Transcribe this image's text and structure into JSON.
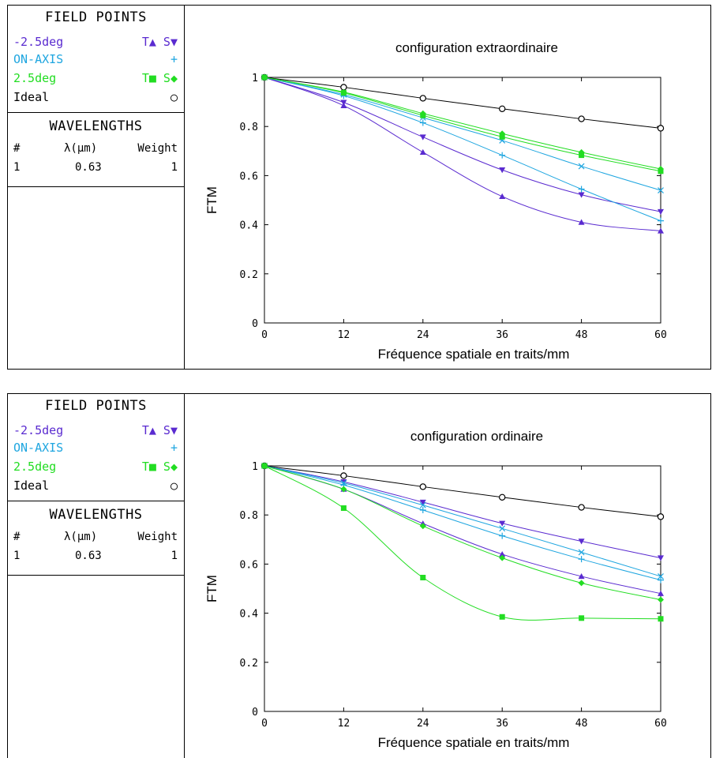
{
  "panels": [
    {
      "field_points": {
        "heading": "FIELD POINTS",
        "rows": [
          {
            "label": "-2.5deg",
            "symbols": "T▲ S▼",
            "color": "#5a2bd0"
          },
          {
            "label": "ON-AXIS",
            "symbols": "+",
            "color": "#1fa6e0"
          },
          {
            "label": "2.5deg",
            "symbols": "T■ S◆",
            "color": "#22dd22"
          },
          {
            "label": "Ideal",
            "symbols": "○",
            "color": "#000000"
          }
        ]
      },
      "wavelengths": {
        "heading": "WAVELENGTHS",
        "columns": [
          "#",
          "λ(µm)",
          "Weight"
        ],
        "rows": [
          [
            "1",
            "0.63",
            "1"
          ]
        ]
      }
    },
    {
      "field_points": {
        "heading": "FIELD POINTS",
        "rows": [
          {
            "label": "-2.5deg",
            "symbols": "T▲ S▼",
            "color": "#5a2bd0"
          },
          {
            "label": "ON-AXIS",
            "symbols": "+",
            "color": "#1fa6e0"
          },
          {
            "label": "2.5deg",
            "symbols": "T■ S◆",
            "color": "#22dd22"
          },
          {
            "label": "Ideal",
            "symbols": "○",
            "color": "#000000"
          }
        ]
      },
      "wavelengths": {
        "heading": "WAVELENGTHS",
        "columns": [
          "#",
          "λ(µm)",
          "Weight"
        ],
        "rows": [
          [
            "1",
            "0.63",
            "1"
          ]
        ]
      }
    }
  ],
  "chart_data": [
    {
      "type": "line",
      "title": "configuration extraordinaire",
      "xlabel": "Fréquence spatiale en traits/mm",
      "ylabel": "FTM",
      "xlim": [
        0,
        60
      ],
      "ylim": [
        0,
        1
      ],
      "x_ticks": [
        "0",
        "12",
        "24",
        "36",
        "48",
        "60"
      ],
      "y_ticks": [
        "0",
        "0.2",
        "0.4",
        "0.6",
        "0.8",
        "1"
      ],
      "x": [
        0,
        12,
        24,
        36,
        48,
        60
      ],
      "series": [
        {
          "marker": "circle",
          "color": "#000000",
          "values": [
            1,
            0.96,
            0.915,
            0.872,
            0.831,
            0.793
          ]
        },
        {
          "marker": "triangle-up",
          "color": "#5a2bd0",
          "values": [
            1,
            0.885,
            0.695,
            0.515,
            0.41,
            0.375
          ]
        },
        {
          "marker": "triangle-down",
          "color": "#5a2bd0",
          "values": [
            1,
            0.898,
            0.757,
            0.623,
            0.522,
            0.453
          ]
        },
        {
          "marker": "plus",
          "color": "#1fa6e0",
          "values": [
            1,
            0.925,
            0.815,
            0.683,
            0.545,
            0.416
          ]
        },
        {
          "marker": "x",
          "color": "#1fa6e0",
          "values": [
            1,
            0.93,
            0.836,
            0.743,
            0.638,
            0.54
          ]
        },
        {
          "marker": "square",
          "color": "#22dd22",
          "values": [
            1,
            0.937,
            0.845,
            0.758,
            0.683,
            0.618
          ]
        },
        {
          "marker": "diamond",
          "color": "#22dd22",
          "values": [
            1,
            0.94,
            0.853,
            0.771,
            0.695,
            0.627
          ]
        }
      ]
    },
    {
      "type": "line",
      "title": "configuration ordinaire",
      "xlabel": "Fréquence spatiale en traits/mm",
      "ylabel": "FTM",
      "xlim": [
        0,
        60
      ],
      "ylim": [
        0,
        1
      ],
      "x_ticks": [
        "0",
        "12",
        "24",
        "36",
        "48",
        "60"
      ],
      "y_ticks": [
        "0",
        "0.2",
        "0.4",
        "0.6",
        "0.8",
        "1"
      ],
      "x": [
        0,
        12,
        24,
        36,
        48,
        60
      ],
      "series": [
        {
          "marker": "circle",
          "color": "#000000",
          "values": [
            1,
            0.96,
            0.915,
            0.872,
            0.831,
            0.793
          ]
        },
        {
          "marker": "triangle-up",
          "color": "#5a2bd0",
          "values": [
            1,
            0.905,
            0.765,
            0.64,
            0.55,
            0.48
          ]
        },
        {
          "marker": "triangle-down",
          "color": "#5a2bd0",
          "values": [
            1,
            0.935,
            0.852,
            0.766,
            0.693,
            0.625
          ]
        },
        {
          "marker": "plus",
          "color": "#1fa6e0",
          "values": [
            1,
            0.922,
            0.82,
            0.715,
            0.62,
            0.535
          ]
        },
        {
          "marker": "x",
          "color": "#1fa6e0",
          "values": [
            1,
            0.93,
            0.84,
            0.745,
            0.648,
            0.55
          ]
        },
        {
          "marker": "square",
          "color": "#22dd22",
          "values": [
            1,
            0.828,
            0.545,
            0.385,
            0.38,
            0.377
          ]
        },
        {
          "marker": "diamond",
          "color": "#22dd22",
          "values": [
            1,
            0.905,
            0.755,
            0.625,
            0.523,
            0.455
          ]
        }
      ]
    }
  ]
}
